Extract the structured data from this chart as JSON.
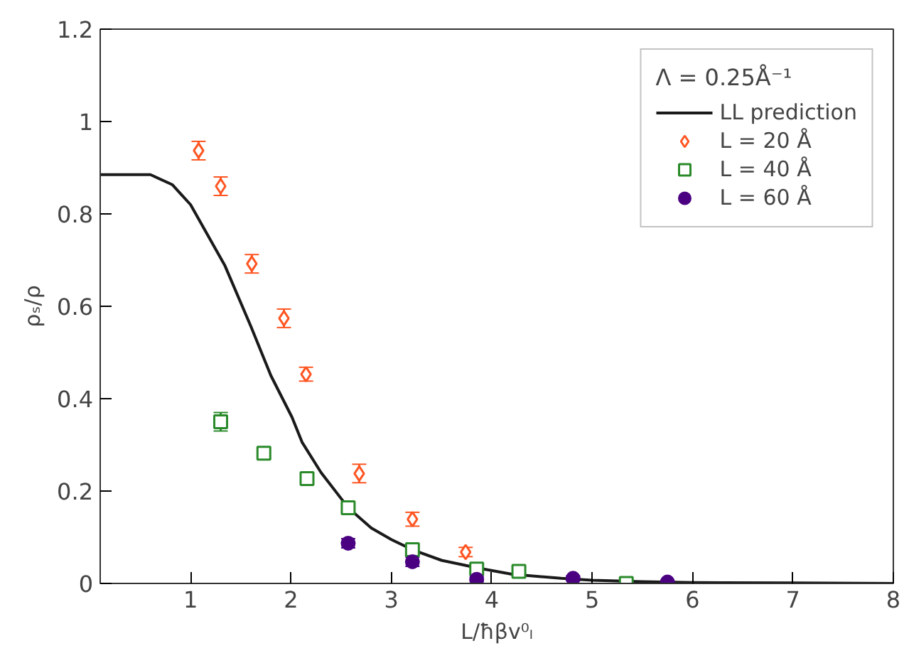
{
  "chart_data": {
    "type": "scatter",
    "xlabel": "L/ħβv⁰ₗ",
    "ylabel": "ρₛ/ρ",
    "legend_title": "Λ = 0.25Å⁻¹",
    "xlim": [
      0.1,
      8
    ],
    "ylim": [
      0,
      1.2
    ],
    "xticks": [
      1,
      2,
      3,
      4,
      5,
      6,
      7,
      8
    ],
    "yticks": [
      0,
      0.2,
      0.4,
      0.6,
      0.8,
      1,
      1.2
    ],
    "grid": false,
    "legend": "top right",
    "series": [
      {
        "name": "LL prediction",
        "type": "line",
        "color": "#1a1a1a",
        "marker": "none",
        "x": [
          0.1,
          0.6,
          0.82,
          1.0,
          1.34,
          1.6,
          1.8,
          2.01,
          2.11,
          2.3,
          2.57,
          2.8,
          3.0,
          3.21,
          3.5,
          3.87,
          4.2,
          4.69,
          5.0,
          5.5,
          6.0,
          7.0,
          8.0
        ],
        "values": [
          0.885,
          0.885,
          0.863,
          0.82,
          0.689,
          0.557,
          0.45,
          0.36,
          0.306,
          0.24,
          0.164,
          0.12,
          0.095,
          0.073,
          0.05,
          0.033,
          0.02,
          0.011,
          0.007,
          0.004,
          0.002,
          0.001,
          0.0
        ]
      },
      {
        "name": "L = 20 Å",
        "color": "#ff5522",
        "marker": "diamond",
        "x": [
          1.08,
          1.3,
          1.61,
          1.93,
          2.15,
          2.68,
          3.21,
          3.74
        ],
        "values": [
          0.937,
          0.86,
          0.692,
          0.574,
          0.453,
          0.238,
          0.139,
          0.068
        ],
        "errors": [
          0.02,
          0.02,
          0.02,
          0.02,
          0.015,
          0.02,
          0.015,
          0.01
        ]
      },
      {
        "name": "L = 40 Å",
        "color": "#2a8a2a",
        "marker": "square",
        "x": [
          1.3,
          1.73,
          2.16,
          2.57,
          3.21,
          3.85,
          4.27,
          5.34
        ],
        "values": [
          0.35,
          0.282,
          0.227,
          0.164,
          0.073,
          0.031,
          0.026,
          0.0
        ],
        "errors": [
          0.02,
          0.012,
          0.012,
          0.01,
          0.01,
          0.008,
          0.008,
          0.005
        ]
      },
      {
        "name": "L = 60 Å",
        "color": "#4b0082",
        "marker": "circle",
        "x": [
          2.57,
          3.21,
          3.85,
          4.81,
          5.75
        ],
        "values": [
          0.087,
          0.047,
          0.009,
          0.011,
          0.003
        ],
        "errors": [
          0.01,
          0.01,
          0.005,
          0.005,
          0.003
        ]
      }
    ]
  }
}
